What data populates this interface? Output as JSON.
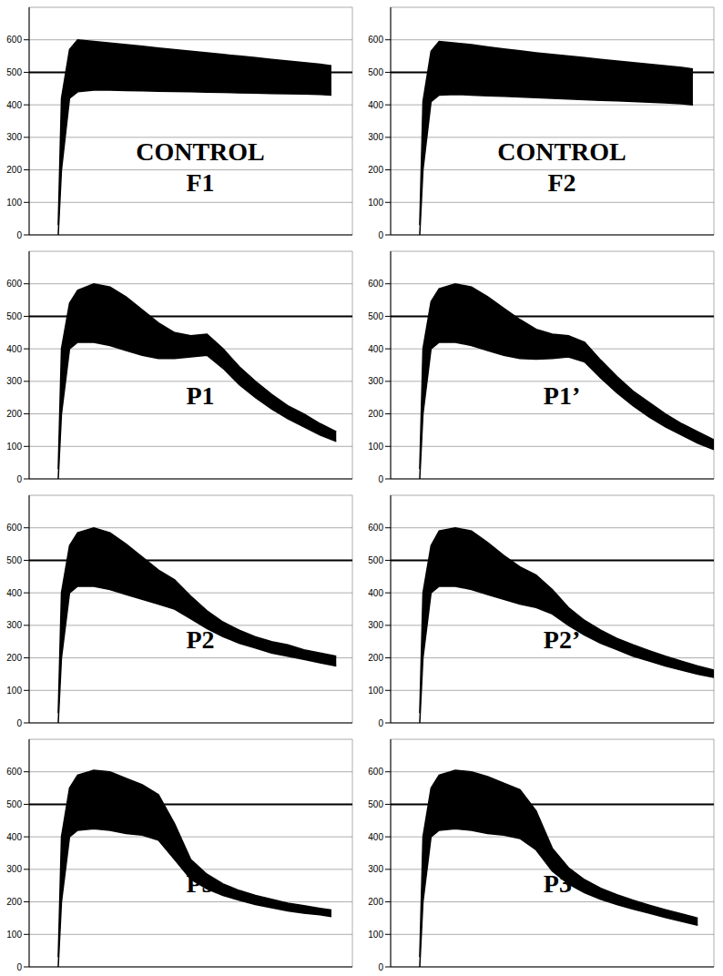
{
  "chart_data": [
    {
      "type": "range_area",
      "label_lines": [
        "CONTROL",
        "F1"
      ],
      "color": "#000000",
      "grid": true,
      "tick_labels": "y",
      "xlim": [
        0,
        20
      ],
      "xticks": [
        0,
        1,
        2,
        3,
        4,
        5,
        6,
        7,
        8,
        9,
        10,
        11,
        12,
        13,
        14,
        15,
        16,
        17,
        18,
        19,
        20
      ],
      "ylim": [
        0,
        700
      ],
      "yticks": [
        0,
        100,
        200,
        300,
        400,
        500,
        600
      ],
      "hline": 500,
      "x": [
        1.8,
        2,
        2.5,
        3,
        4,
        5,
        6,
        7,
        8,
        9,
        10,
        11,
        12,
        13,
        14,
        15,
        16,
        17,
        18,
        18.7
      ],
      "band": [
        [
          0,
          30
        ],
        [
          200,
          420
        ],
        [
          420,
          570
        ],
        [
          440,
          600
        ],
        [
          445,
          595
        ],
        [
          445,
          590
        ],
        [
          444,
          585
        ],
        [
          443,
          580
        ],
        [
          442,
          575
        ],
        [
          441,
          570
        ],
        [
          440,
          565
        ],
        [
          439,
          560
        ],
        [
          438,
          555
        ],
        [
          437,
          550
        ],
        [
          436,
          545
        ],
        [
          435,
          540
        ],
        [
          434,
          535
        ],
        [
          433,
          530
        ],
        [
          432,
          525
        ],
        [
          430,
          520
        ]
      ]
    },
    {
      "type": "range_area",
      "label_lines": [
        "CONTROL",
        "F2"
      ],
      "color": "#000000",
      "grid": true,
      "tick_labels": "y",
      "xlim": [
        0,
        20
      ],
      "xticks": [
        0,
        1,
        2,
        3,
        4,
        5,
        6,
        7,
        8,
        9,
        10,
        11,
        12,
        13,
        14,
        15,
        16,
        17,
        18,
        19,
        20
      ],
      "ylim": [
        0,
        700
      ],
      "yticks": [
        0,
        100,
        200,
        300,
        400,
        500,
        600
      ],
      "hline": 500,
      "x": [
        1.8,
        2,
        2.5,
        3,
        4,
        5,
        6,
        7,
        8,
        9,
        10,
        11,
        12,
        13,
        14,
        15,
        16,
        17,
        18,
        18.7
      ],
      "band": [
        [
          0,
          30
        ],
        [
          200,
          410
        ],
        [
          410,
          565
        ],
        [
          430,
          595
        ],
        [
          432,
          590
        ],
        [
          430,
          585
        ],
        [
          428,
          578
        ],
        [
          426,
          572
        ],
        [
          424,
          566
        ],
        [
          422,
          560
        ],
        [
          420,
          555
        ],
        [
          418,
          550
        ],
        [
          416,
          545
        ],
        [
          414,
          540
        ],
        [
          412,
          535
        ],
        [
          410,
          530
        ],
        [
          408,
          525
        ],
        [
          406,
          520
        ],
        [
          403,
          515
        ],
        [
          400,
          510
        ]
      ]
    },
    {
      "type": "range_area",
      "label_lines": [
        "P1"
      ],
      "color": "#000000",
      "grid": true,
      "tick_labels": "y",
      "xlim": [
        0,
        20
      ],
      "xticks": [
        0,
        1,
        2,
        3,
        4,
        5,
        6,
        7,
        8,
        9,
        10,
        11,
        12,
        13,
        14,
        15,
        16,
        17,
        18,
        19,
        20
      ],
      "ylim": [
        0,
        700
      ],
      "yticks": [
        0,
        100,
        200,
        300,
        400,
        500,
        600
      ],
      "hline": 500,
      "x": [
        1.8,
        2,
        2.5,
        3,
        4,
        5,
        6,
        7,
        8,
        9,
        10,
        11,
        12,
        13,
        14,
        15,
        16,
        17,
        18,
        19
      ],
      "band": [
        [
          0,
          30
        ],
        [
          200,
          400
        ],
        [
          400,
          540
        ],
        [
          420,
          580
        ],
        [
          420,
          600
        ],
        [
          410,
          590
        ],
        [
          395,
          560
        ],
        [
          380,
          520
        ],
        [
          370,
          480
        ],
        [
          370,
          450
        ],
        [
          375,
          440
        ],
        [
          380,
          445
        ],
        [
          340,
          400
        ],
        [
          290,
          345
        ],
        [
          250,
          300
        ],
        [
          215,
          260
        ],
        [
          185,
          225
        ],
        [
          160,
          200
        ],
        [
          135,
          170
        ],
        [
          115,
          145
        ]
      ]
    },
    {
      "type": "range_area",
      "label_lines": [
        "P1’"
      ],
      "color": "#000000",
      "grid": true,
      "tick_labels": "y",
      "xlim": [
        0,
        20
      ],
      "xticks": [
        0,
        1,
        2,
        3,
        4,
        5,
        6,
        7,
        8,
        9,
        10,
        11,
        12,
        13,
        14,
        15,
        16,
        17,
        18,
        19,
        20
      ],
      "ylim": [
        0,
        700
      ],
      "yticks": [
        0,
        100,
        200,
        300,
        400,
        500,
        600
      ],
      "hline": 500,
      "x": [
        1.8,
        2,
        2.5,
        3,
        4,
        5,
        6,
        7,
        8,
        9,
        10,
        11,
        12,
        13,
        14,
        15,
        16,
        17,
        18,
        19,
        20
      ],
      "band": [
        [
          0,
          30
        ],
        [
          200,
          400
        ],
        [
          400,
          545
        ],
        [
          420,
          585
        ],
        [
          420,
          600
        ],
        [
          410,
          590
        ],
        [
          395,
          560
        ],
        [
          380,
          525
        ],
        [
          370,
          490
        ],
        [
          368,
          460
        ],
        [
          370,
          445
        ],
        [
          375,
          440
        ],
        [
          360,
          420
        ],
        [
          310,
          365
        ],
        [
          265,
          315
        ],
        [
          225,
          270
        ],
        [
          190,
          235
        ],
        [
          160,
          200
        ],
        [
          135,
          170
        ],
        [
          110,
          145
        ],
        [
          90,
          120
        ]
      ]
    },
    {
      "type": "range_area",
      "label_lines": [
        "P2"
      ],
      "color": "#000000",
      "grid": true,
      "tick_labels": "y",
      "xlim": [
        0,
        20
      ],
      "xticks": [
        0,
        1,
        2,
        3,
        4,
        5,
        6,
        7,
        8,
        9,
        10,
        11,
        12,
        13,
        14,
        15,
        16,
        17,
        18,
        19,
        20
      ],
      "ylim": [
        0,
        700
      ],
      "yticks": [
        0,
        100,
        200,
        300,
        400,
        500,
        600
      ],
      "hline": 500,
      "x": [
        1.8,
        2,
        2.5,
        3,
        4,
        5,
        6,
        7,
        8,
        9,
        10,
        11,
        12,
        13,
        14,
        15,
        16,
        17,
        18,
        19
      ],
      "band": [
        [
          0,
          30
        ],
        [
          200,
          400
        ],
        [
          400,
          545
        ],
        [
          420,
          585
        ],
        [
          420,
          600
        ],
        [
          410,
          585
        ],
        [
          395,
          550
        ],
        [
          380,
          510
        ],
        [
          365,
          470
        ],
        [
          350,
          440
        ],
        [
          320,
          390
        ],
        [
          290,
          345
        ],
        [
          265,
          310
        ],
        [
          245,
          285
        ],
        [
          230,
          265
        ],
        [
          215,
          250
        ],
        [
          205,
          240
        ],
        [
          195,
          225
        ],
        [
          185,
          215
        ],
        [
          175,
          205
        ]
      ]
    },
    {
      "type": "range_area",
      "label_lines": [
        "P2’"
      ],
      "color": "#000000",
      "grid": true,
      "tick_labels": "y",
      "xlim": [
        0,
        20
      ],
      "xticks": [
        0,
        1,
        2,
        3,
        4,
        5,
        6,
        7,
        8,
        9,
        10,
        11,
        12,
        13,
        14,
        15,
        16,
        17,
        18,
        19,
        20
      ],
      "ylim": [
        0,
        700
      ],
      "yticks": [
        0,
        100,
        200,
        300,
        400,
        500,
        600
      ],
      "hline": 500,
      "x": [
        1.8,
        2,
        2.5,
        3,
        4,
        5,
        6,
        7,
        8,
        9,
        10,
        11,
        12,
        13,
        14,
        15,
        16,
        17,
        18,
        19,
        20
      ],
      "band": [
        [
          0,
          30
        ],
        [
          200,
          400
        ],
        [
          400,
          545
        ],
        [
          420,
          590
        ],
        [
          420,
          600
        ],
        [
          410,
          590
        ],
        [
          395,
          555
        ],
        [
          380,
          515
        ],
        [
          365,
          480
        ],
        [
          355,
          455
        ],
        [
          335,
          410
        ],
        [
          300,
          355
        ],
        [
          270,
          315
        ],
        [
          245,
          285
        ],
        [
          225,
          260
        ],
        [
          205,
          240
        ],
        [
          190,
          222
        ],
        [
          175,
          205
        ],
        [
          162,
          190
        ],
        [
          150,
          175
        ],
        [
          140,
          162
        ]
      ]
    },
    {
      "type": "range_area",
      "label_lines": [
        "P3"
      ],
      "color": "#000000",
      "grid": true,
      "tick_labels": "y",
      "xlim": [
        0,
        20
      ],
      "xticks": [
        0,
        1,
        2,
        3,
        4,
        5,
        6,
        7,
        8,
        9,
        10,
        11,
        12,
        13,
        14,
        15,
        16,
        17,
        18,
        19,
        20
      ],
      "ylim": [
        0,
        700
      ],
      "yticks": [
        0,
        100,
        200,
        300,
        400,
        500,
        600
      ],
      "hline": 500,
      "x": [
        1.8,
        2,
        2.5,
        3,
        4,
        5,
        6,
        7,
        8,
        9,
        10,
        11,
        12,
        13,
        14,
        15,
        16,
        17,
        18,
        18.7
      ],
      "band": [
        [
          0,
          30
        ],
        [
          200,
          400
        ],
        [
          400,
          550
        ],
        [
          420,
          590
        ],
        [
          425,
          605
        ],
        [
          420,
          600
        ],
        [
          410,
          580
        ],
        [
          405,
          560
        ],
        [
          390,
          530
        ],
        [
          330,
          440
        ],
        [
          270,
          330
        ],
        [
          240,
          285
        ],
        [
          220,
          255
        ],
        [
          205,
          235
        ],
        [
          192,
          220
        ],
        [
          182,
          208
        ],
        [
          172,
          196
        ],
        [
          165,
          188
        ],
        [
          160,
          180
        ],
        [
          155,
          175
        ]
      ]
    },
    {
      "type": "range_area",
      "label_lines": [
        "P3’"
      ],
      "color": "#000000",
      "grid": true,
      "tick_labels": "y",
      "xlim": [
        0,
        20
      ],
      "xticks": [
        0,
        1,
        2,
        3,
        4,
        5,
        6,
        7,
        8,
        9,
        10,
        11,
        12,
        13,
        14,
        15,
        16,
        17,
        18,
        19,
        20
      ],
      "ylim": [
        0,
        700
      ],
      "yticks": [
        0,
        100,
        200,
        300,
        400,
        500,
        600
      ],
      "hline": 500,
      "x": [
        1.8,
        2,
        2.5,
        3,
        4,
        5,
        6,
        7,
        8,
        9,
        10,
        11,
        12,
        13,
        14,
        15,
        16,
        17,
        18,
        19
      ],
      "band": [
        [
          0,
          30
        ],
        [
          200,
          400
        ],
        [
          400,
          550
        ],
        [
          420,
          590
        ],
        [
          425,
          605
        ],
        [
          420,
          600
        ],
        [
          410,
          585
        ],
        [
          405,
          565
        ],
        [
          395,
          545
        ],
        [
          360,
          480
        ],
        [
          295,
          365
        ],
        [
          255,
          305
        ],
        [
          228,
          268
        ],
        [
          208,
          242
        ],
        [
          192,
          222
        ],
        [
          178,
          205
        ],
        [
          165,
          190
        ],
        [
          152,
          176
        ],
        [
          140,
          163
        ],
        [
          128,
          150
        ]
      ]
    }
  ]
}
